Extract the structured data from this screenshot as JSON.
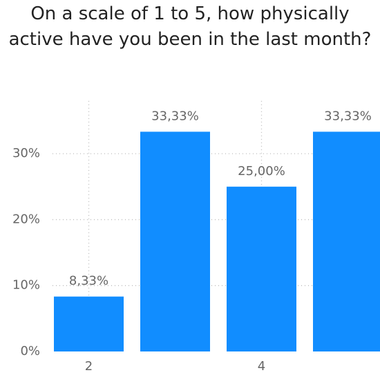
{
  "chart_data": {
    "type": "bar",
    "title": "On a scale of 1 to 5, how physically active have you been in the last month?",
    "categories": [
      "2",
      null,
      "4",
      null
    ],
    "values": [
      8.33,
      33.33,
      25.0,
      33.33
    ],
    "value_labels": [
      "8,33%",
      "33,33%",
      "25,00%",
      "33,33%"
    ],
    "color": "#118dff",
    "ylim": [
      0,
      38
    ],
    "yticks": [
      {
        "value": 0,
        "label": "0%"
      },
      {
        "value": 10,
        "label": "10%"
      },
      {
        "value": 20,
        "label": "20%"
      },
      {
        "value": 30,
        "label": "30%"
      }
    ],
    "grid": true
  }
}
